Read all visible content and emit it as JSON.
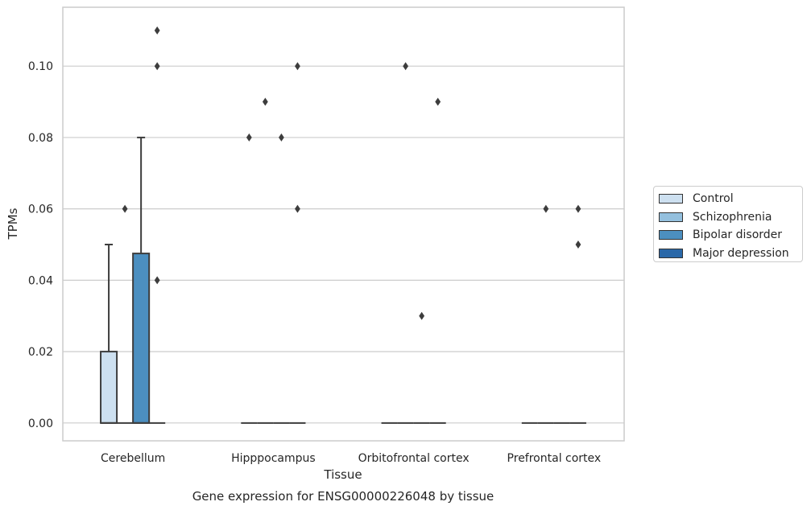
{
  "chart_data": {
    "type": "box",
    "title": "",
    "caption": "Gene expression for ENSG00000226048 by tissue",
    "xlabel": "Tissue",
    "ylabel": "TPMs",
    "categories": [
      "Cerebellum",
      "Hipppocampus",
      "Orbitofrontal cortex",
      "Prefrontal cortex"
    ],
    "ylim": [
      -0.005,
      0.1165
    ],
    "yticks": [
      "0.00",
      "0.02",
      "0.04",
      "0.06",
      "0.08",
      "0.10"
    ],
    "grid": true,
    "legend_position": "right",
    "series": [
      {
        "name": "Control",
        "color": "#cde0f0",
        "boxes": [
          {
            "q1": 0,
            "median": 0,
            "q3": 0.02,
            "whisker_low": 0,
            "whisker_high": 0.05,
            "outliers": []
          },
          {
            "q1": 0,
            "median": 0,
            "q3": 0,
            "whisker_low": 0,
            "whisker_high": 0,
            "outliers": [
              0.08
            ]
          },
          {
            "q1": 0,
            "median": 0,
            "q3": 0,
            "whisker_low": 0,
            "whisker_high": 0,
            "outliers": []
          },
          {
            "q1": 0,
            "median": 0,
            "q3": 0,
            "whisker_low": 0,
            "whisker_high": 0,
            "outliers": []
          }
        ]
      },
      {
        "name": "Schizophrenia",
        "color": "#94c0de",
        "boxes": [
          {
            "q1": 0,
            "median": 0,
            "q3": 0,
            "whisker_low": 0,
            "whisker_high": 0,
            "outliers": [
              0.06
            ]
          },
          {
            "q1": 0,
            "median": 0,
            "q3": 0,
            "whisker_low": 0,
            "whisker_high": 0,
            "outliers": [
              0.09
            ]
          },
          {
            "q1": 0,
            "median": 0,
            "q3": 0,
            "whisker_low": 0,
            "whisker_high": 0,
            "outliers": [
              0.1
            ]
          },
          {
            "q1": 0,
            "median": 0,
            "q3": 0,
            "whisker_low": 0,
            "whisker_high": 0,
            "outliers": [
              0.06
            ]
          }
        ]
      },
      {
        "name": "Bipolar disorder",
        "color": "#4c8fc0",
        "boxes": [
          {
            "q1": 0,
            "median": 0,
            "q3": 0.0475,
            "whisker_low": 0,
            "whisker_high": 0.08,
            "outliers": []
          },
          {
            "q1": 0,
            "median": 0,
            "q3": 0,
            "whisker_low": 0,
            "whisker_high": 0,
            "outliers": [
              0.08
            ]
          },
          {
            "q1": 0,
            "median": 0,
            "q3": 0,
            "whisker_low": 0,
            "whisker_high": 0,
            "outliers": [
              0.03
            ]
          },
          {
            "q1": 0,
            "median": 0,
            "q3": 0,
            "whisker_low": 0,
            "whisker_high": 0,
            "outliers": []
          }
        ]
      },
      {
        "name": "Major depression",
        "color": "#2a68a8",
        "boxes": [
          {
            "q1": 0,
            "median": 0,
            "q3": 0,
            "whisker_low": 0,
            "whisker_high": 0,
            "outliers": [
              0.11,
              0.1,
              0.04
            ]
          },
          {
            "q1": 0,
            "median": 0,
            "q3": 0,
            "whisker_low": 0,
            "whisker_high": 0,
            "outliers": [
              0.1,
              0.06
            ]
          },
          {
            "q1": 0,
            "median": 0,
            "q3": 0,
            "whisker_low": 0,
            "whisker_high": 0,
            "outliers": [
              0.09
            ]
          },
          {
            "q1": 0,
            "median": 0,
            "q3": 0,
            "whisker_low": 0,
            "whisker_high": 0,
            "outliers": [
              0.06,
              0.05
            ]
          }
        ]
      }
    ]
  }
}
